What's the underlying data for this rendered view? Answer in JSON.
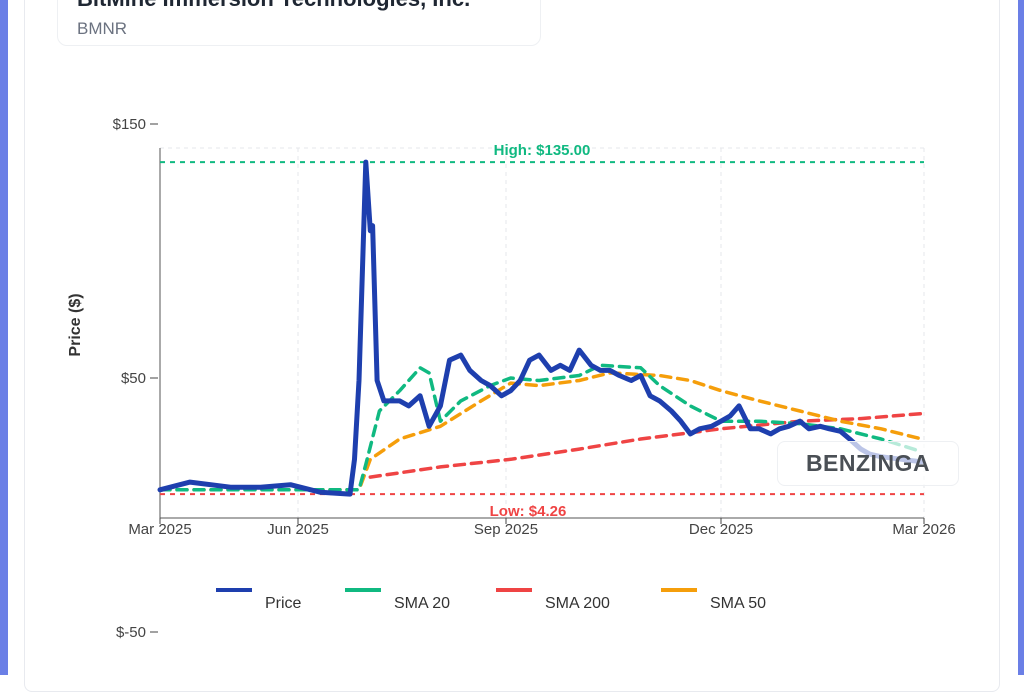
{
  "header": {
    "company_name": "BitMine Immersion Technologies, Inc.",
    "ticker": "BMNR"
  },
  "watermark": "BENZINGA",
  "colors": {
    "price": "#1e3fae",
    "sma20": "#10b981",
    "sma200": "#ef4444",
    "sma50": "#f59e0b",
    "accent_border": "#6b7fe6"
  },
  "chart_data": {
    "type": "line",
    "ylabel": "Price ($)",
    "xlabel": "",
    "ylim": [
      -50,
      150
    ],
    "yticks": [
      {
        "v": 150,
        "label": "$150"
      },
      {
        "v": 50,
        "label": "$50"
      },
      {
        "v": -50,
        "label": "$-50"
      }
    ],
    "xticks": [
      {
        "d": "2025-03-01",
        "label": "Mar 2025"
      },
      {
        "d": "2025-06-01",
        "label": "Jun 2025"
      },
      {
        "d": "2025-09-01",
        "label": "Sep 2025"
      },
      {
        "d": "2025-12-01",
        "label": "Dec 2025"
      },
      {
        "d": "2026-03-01",
        "label": "Mar 2026"
      }
    ],
    "grid": true,
    "legend_position": "bottom",
    "annotations": {
      "high": {
        "value": 135.0,
        "label": "High: $135.00"
      },
      "low": {
        "value": 4.26,
        "label": "Low: $4.26"
      }
    },
    "series": [
      {
        "name": "Price",
        "style": "solid",
        "points": [
          [
            "2025-03-01",
            6
          ],
          [
            "2025-03-21",
            9
          ],
          [
            "2025-04-17",
            7
          ],
          [
            "2025-05-07",
            7
          ],
          [
            "2025-05-27",
            8
          ],
          [
            "2025-06-11",
            5
          ],
          [
            "2025-06-24",
            4.3
          ],
          [
            "2025-06-26",
            18
          ],
          [
            "2025-06-28",
            49
          ],
          [
            "2025-07-01",
            135
          ],
          [
            "2025-07-03",
            108
          ],
          [
            "2025-07-04",
            110
          ],
          [
            "2025-07-06",
            49
          ],
          [
            "2025-07-09",
            41
          ],
          [
            "2025-07-16",
            41
          ],
          [
            "2025-07-20",
            39
          ],
          [
            "2025-07-25",
            43
          ],
          [
            "2025-07-29",
            31
          ],
          [
            "2025-08-03",
            39
          ],
          [
            "2025-08-07",
            57
          ],
          [
            "2025-08-12",
            59
          ],
          [
            "2025-08-16",
            53
          ],
          [
            "2025-08-21",
            49
          ],
          [
            "2025-08-25",
            47
          ],
          [
            "2025-08-30",
            43
          ],
          [
            "2025-09-03",
            45
          ],
          [
            "2025-09-07",
            49
          ],
          [
            "2025-09-11",
            57
          ],
          [
            "2025-09-15",
            59
          ],
          [
            "2025-09-20",
            53
          ],
          [
            "2025-09-24",
            55
          ],
          [
            "2025-09-28",
            53
          ],
          [
            "2025-10-02",
            61
          ],
          [
            "2025-10-07",
            55
          ],
          [
            "2025-10-11",
            53
          ],
          [
            "2025-10-15",
            53
          ],
          [
            "2025-10-19",
            51
          ],
          [
            "2025-10-24",
            49
          ],
          [
            "2025-10-28",
            51
          ],
          [
            "2025-11-01",
            43
          ],
          [
            "2025-11-05",
            41
          ],
          [
            "2025-11-10",
            37
          ],
          [
            "2025-11-14",
            33
          ],
          [
            "2025-11-18",
            28
          ],
          [
            "2025-11-22",
            30
          ],
          [
            "2025-11-27",
            31
          ],
          [
            "2025-12-01",
            33
          ],
          [
            "2025-12-05",
            35
          ],
          [
            "2025-12-09",
            39
          ],
          [
            "2025-12-14",
            30
          ],
          [
            "2025-12-18",
            30
          ],
          [
            "2025-12-23",
            28
          ],
          [
            "2025-12-27",
            30
          ],
          [
            "2025-12-31",
            31
          ],
          [
            "2026-01-05",
            33
          ],
          [
            "2026-01-09",
            30
          ],
          [
            "2026-01-14",
            31
          ],
          [
            "2026-01-18",
            30
          ],
          [
            "2026-01-23",
            29
          ],
          [
            "2026-01-27",
            26
          ],
          [
            "2026-02-01",
            22
          ],
          [
            "2026-02-05",
            20
          ],
          [
            "2026-02-10",
            19
          ],
          [
            "2026-02-19",
            18
          ],
          [
            "2026-02-28",
            17
          ]
        ]
      },
      {
        "name": "SMA 20",
        "style": "dashed",
        "points": [
          [
            "2025-03-01",
            6
          ],
          [
            "2025-06-28",
            6
          ],
          [
            "2025-07-01",
            16
          ],
          [
            "2025-07-07",
            37
          ],
          [
            "2025-07-16",
            45
          ],
          [
            "2025-07-25",
            54
          ],
          [
            "2025-07-29",
            52
          ],
          [
            "2025-08-03",
            33
          ],
          [
            "2025-08-12",
            41
          ],
          [
            "2025-08-25",
            47
          ],
          [
            "2025-09-03",
            50
          ],
          [
            "2025-09-15",
            49
          ],
          [
            "2025-10-02",
            51
          ],
          [
            "2025-10-11",
            55
          ],
          [
            "2025-10-28",
            54
          ],
          [
            "2025-11-05",
            47
          ],
          [
            "2025-11-18",
            39
          ],
          [
            "2025-12-01",
            33
          ],
          [
            "2025-12-18",
            33
          ],
          [
            "2026-01-05",
            32
          ],
          [
            "2026-01-23",
            30
          ],
          [
            "2026-02-10",
            26
          ],
          [
            "2026-02-28",
            21
          ]
        ]
      },
      {
        "name": "SMA 200",
        "style": "dashed",
        "points": [
          [
            "2025-07-03",
            11
          ],
          [
            "2025-08-03",
            15
          ],
          [
            "2025-09-03",
            18
          ],
          [
            "2025-10-02",
            22
          ],
          [
            "2025-10-28",
            26
          ],
          [
            "2025-12-01",
            30
          ],
          [
            "2026-01-05",
            33
          ],
          [
            "2026-02-01",
            34
          ],
          [
            "2026-02-28",
            36
          ]
        ]
      },
      {
        "name": "SMA 50",
        "style": "dashed",
        "points": [
          [
            "2025-03-01",
            6
          ],
          [
            "2025-06-28",
            6
          ],
          [
            "2025-07-03",
            18
          ],
          [
            "2025-07-16",
            26
          ],
          [
            "2025-08-03",
            31
          ],
          [
            "2025-08-21",
            41
          ],
          [
            "2025-09-03",
            48
          ],
          [
            "2025-09-15",
            47
          ],
          [
            "2025-10-02",
            49
          ],
          [
            "2025-10-15",
            52
          ],
          [
            "2025-11-05",
            51
          ],
          [
            "2025-11-18",
            49
          ],
          [
            "2025-12-01",
            45
          ],
          [
            "2025-12-18",
            41
          ],
          [
            "2026-01-05",
            37
          ],
          [
            "2026-01-23",
            33
          ],
          [
            "2026-02-10",
            30
          ],
          [
            "2026-02-28",
            26
          ]
        ]
      }
    ]
  }
}
